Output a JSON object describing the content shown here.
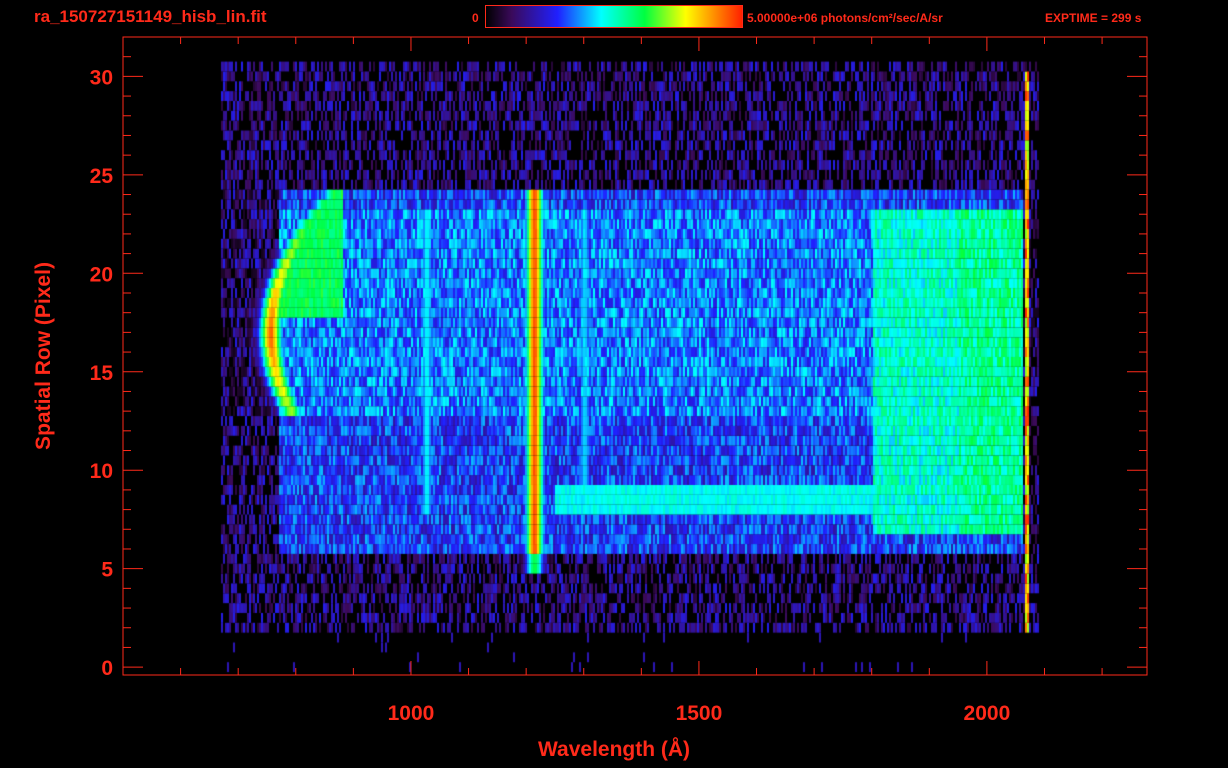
{
  "header": {
    "title": "ra_150727151149_hisb_lin.fit",
    "colorbar_min": "0",
    "colorbar_max": "5.00000e+06 photons/cm²/sec/A/sr",
    "exptime": "EXPTIME = 299 s"
  },
  "colors": {
    "axis": "#ff2a1a",
    "background": "#000000"
  },
  "chart_data": {
    "type": "heatmap",
    "title": "ra_150727151149_hisb_lin.fit",
    "xlabel": "Wavelength (Å)",
    "ylabel": "Spatial Row (Pixel)",
    "xlim": [
      500,
      2278
    ],
    "ylim": [
      -0.4,
      32
    ],
    "x_ticks": [
      "1000",
      "1500",
      "2000"
    ],
    "x_tick_values": [
      1000,
      1500,
      2000
    ],
    "y_ticks": [
      "0",
      "5",
      "10",
      "15",
      "20",
      "25",
      "30"
    ],
    "y_tick_values": [
      0,
      5,
      10,
      15,
      20,
      25,
      30
    ],
    "colorscale": {
      "min": 0,
      "max": 5000000,
      "units": "photons/cm²/sec/A/sr",
      "map": "rainbow"
    },
    "data_extent": {
      "wavelength": [
        670,
        2075
      ],
      "rows": [
        0,
        30
      ]
    },
    "source_rows": [
      5,
      24
    ],
    "features": [
      {
        "name": "emission-760",
        "wavelength": 760,
        "rows": [
          13,
          24
        ],
        "peak_fraction": 0.9
      },
      {
        "name": "emission-1026",
        "wavelength": 1026,
        "rows": [
          8,
          23
        ],
        "peak_fraction": 0.45
      },
      {
        "name": "lyman-alpha-1216",
        "wavelength": 1216,
        "rows": [
          5,
          24
        ],
        "peak_fraction": 0.95
      },
      {
        "name": "emission-1304",
        "wavelength": 1304,
        "rows": [
          9,
          23
        ],
        "peak_fraction": 0.42
      },
      {
        "name": "continuum-1800-2060",
        "wavelength": [
          1800,
          2060
        ],
        "rows": [
          6,
          24
        ],
        "peak_fraction": 0.55
      }
    ]
  }
}
